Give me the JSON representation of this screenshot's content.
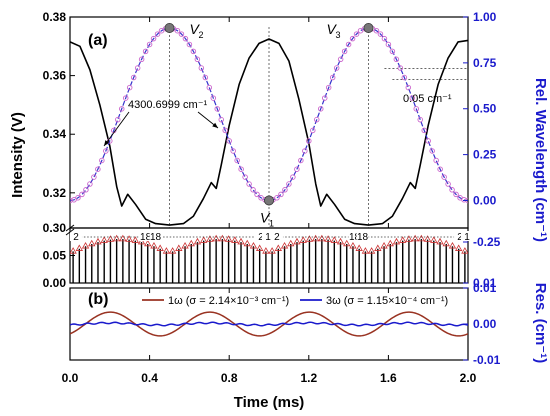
{
  "chart_data": [
    {
      "panel": "(a)",
      "type": "line",
      "xlabel": "Time (ms)",
      "ylabel": "Intensity (V)",
      "ylabel_right": "Rel. Wavelength (cm⁻¹)",
      "xlim": [
        0.0,
        2.0
      ],
      "xticks": [
        "0.0",
        "0.4",
        "0.8",
        "1.2",
        "1.6",
        "2.0"
      ],
      "ylim": [
        0.308,
        0.38
      ],
      "yticks": [
        "0.32",
        "0.34",
        "0.36",
        "0.38"
      ],
      "ylim_right": [
        -0.15,
        1.0
      ],
      "yticks_right": [
        "0.00",
        "0.25",
        "0.50",
        "0.75",
        "1.00"
      ],
      "intensity_series": {
        "color": "#000000",
        "points": [
          [
            0.0,
            0.3715
          ],
          [
            0.05,
            0.37
          ],
          [
            0.1,
            0.362
          ],
          [
            0.15,
            0.35
          ],
          [
            0.2,
            0.336
          ],
          [
            0.235,
            0.322
          ],
          [
            0.26,
            0.3155
          ],
          [
            0.29,
            0.3195
          ],
          [
            0.33,
            0.316
          ],
          [
            0.38,
            0.311
          ],
          [
            0.43,
            0.3095
          ],
          [
            0.5,
            0.309
          ],
          [
            0.57,
            0.3095
          ],
          [
            0.62,
            0.312
          ],
          [
            0.67,
            0.318
          ],
          [
            0.71,
            0.3235
          ],
          [
            0.735,
            0.3215
          ],
          [
            0.76,
            0.3295
          ],
          [
            0.8,
            0.343
          ],
          [
            0.85,
            0.357
          ],
          [
            0.9,
            0.366
          ],
          [
            0.95,
            0.371
          ],
          [
            1.0,
            0.3725
          ],
          [
            1.05,
            0.371
          ],
          [
            1.1,
            0.365
          ],
          [
            1.15,
            0.352
          ],
          [
            1.2,
            0.337
          ],
          [
            1.235,
            0.323
          ],
          [
            1.26,
            0.3155
          ],
          [
            1.29,
            0.3195
          ],
          [
            1.33,
            0.316
          ],
          [
            1.38,
            0.311
          ],
          [
            1.43,
            0.3095
          ],
          [
            1.5,
            0.309
          ],
          [
            1.57,
            0.3095
          ],
          [
            1.62,
            0.312
          ],
          [
            1.67,
            0.318
          ],
          [
            1.71,
            0.3235
          ],
          [
            1.735,
            0.3215
          ],
          [
            1.76,
            0.3295
          ],
          [
            1.8,
            0.343
          ],
          [
            1.85,
            0.357
          ],
          [
            1.9,
            0.366
          ],
          [
            1.95,
            0.3715
          ],
          [
            2.0,
            0.372
          ]
        ]
      },
      "wavelength_series": {
        "markers_color": "#cc66cc",
        "fit_color": "#3333cc",
        "period_ms": 1.0,
        "min": 0.0,
        "max": 0.94,
        "minima_at_ms": [
          0.0,
          1.0,
          2.0
        ],
        "maxima_at_ms": [
          0.5,
          1.5
        ]
      },
      "points_labeled": [
        {
          "label": "V",
          "sub": "1",
          "x": 1.0,
          "y_right": 0.0
        },
        {
          "label": "V",
          "sub": "2",
          "x": 0.5,
          "y_right": 0.94
        },
        {
          "label": "V",
          "sub": "3",
          "x": 1.5,
          "y_right": 0.94
        }
      ],
      "annotations": {
        "wavenumber": "4300.6999 cm⁻¹",
        "spacing": "0.05 cm⁻¹"
      },
      "lower_peaks": {
        "ylim": [
          0.0,
          0.1
        ],
        "yticks": [
          "0.00",
          "0.05"
        ],
        "top_tick": "0.30",
        "ylim_right": [
          -0.25,
          0.01
        ],
        "yticks_right": [
          "-0.25",
          "0.01"
        ],
        "marker_color": "#cc3333",
        "labels": [
          "2",
          "18",
          "18",
          "2",
          "1",
          "2",
          "18",
          "18",
          "2",
          "1"
        ],
        "label_positions_ms": [
          0.03,
          0.38,
          0.43,
          0.96,
          0.995,
          1.04,
          1.43,
          1.47,
          1.96,
          1.995
        ]
      }
    },
    {
      "panel": "(b)",
      "type": "line",
      "ylabel_right": "Res. (cm⁻¹)",
      "ylim": [
        -0.01,
        0.01
      ],
      "yticks": [
        "-0.01",
        "0.00",
        "0.01"
      ],
      "series": [
        {
          "name": "1ω (σ = 2.14×10⁻³ cm⁻¹)",
          "color": "#993322",
          "amplitude": 0.0033,
          "period_ms": 0.5
        },
        {
          "name": "3ω (σ = 1.15×10⁻⁴ cm⁻¹)",
          "color": "#1a1acc",
          "amplitude": 0.0003,
          "period_ms": 0.5
        }
      ]
    }
  ],
  "colors": {
    "right_axis": "#1a1acc",
    "black": "#000000"
  }
}
